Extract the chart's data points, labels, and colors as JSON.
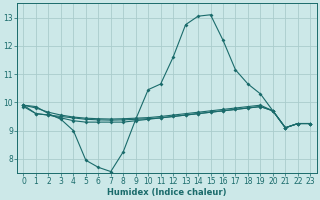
{
  "background_color": "#cce8e8",
  "grid_color": "#aacccc",
  "line_color": "#1a6b6b",
  "xlabel": "Humidex (Indice chaleur)",
  "xlim": [
    -0.5,
    23.5
  ],
  "ylim": [
    7.5,
    13.5
  ],
  "yticks": [
    8,
    9,
    10,
    11,
    12,
    13
  ],
  "xticks": [
    0,
    1,
    2,
    3,
    4,
    5,
    6,
    7,
    8,
    9,
    10,
    11,
    12,
    13,
    14,
    15,
    16,
    17,
    18,
    19,
    20,
    21,
    22,
    23
  ],
  "series1": [
    9.9,
    9.85,
    9.6,
    9.4,
    9.0,
    7.95,
    7.7,
    7.55,
    8.25,
    9.4,
    10.45,
    10.65,
    11.6,
    12.75,
    13.05,
    13.1,
    12.2,
    11.15,
    10.65,
    10.3,
    9.7,
    9.1,
    9.25,
    9.25
  ],
  "series2": [
    9.85,
    9.6,
    9.55,
    9.45,
    9.35,
    9.3,
    9.3,
    9.3,
    9.3,
    9.35,
    9.4,
    9.45,
    9.5,
    9.55,
    9.6,
    9.65,
    9.7,
    9.75,
    9.8,
    9.85,
    9.7,
    9.1,
    9.25,
    9.25
  ],
  "series3": [
    9.9,
    9.6,
    9.55,
    9.5,
    9.45,
    9.4,
    9.38,
    9.37,
    9.38,
    9.4,
    9.42,
    9.45,
    9.5,
    9.55,
    9.6,
    9.65,
    9.7,
    9.75,
    9.8,
    9.85,
    9.7,
    9.1,
    9.25,
    9.25
  ],
  "series4": [
    9.9,
    9.8,
    9.65,
    9.55,
    9.48,
    9.44,
    9.42,
    9.41,
    9.42,
    9.44,
    9.46,
    9.5,
    9.55,
    9.6,
    9.65,
    9.7,
    9.75,
    9.8,
    9.85,
    9.9,
    9.7,
    9.1,
    9.25,
    9.25
  ]
}
